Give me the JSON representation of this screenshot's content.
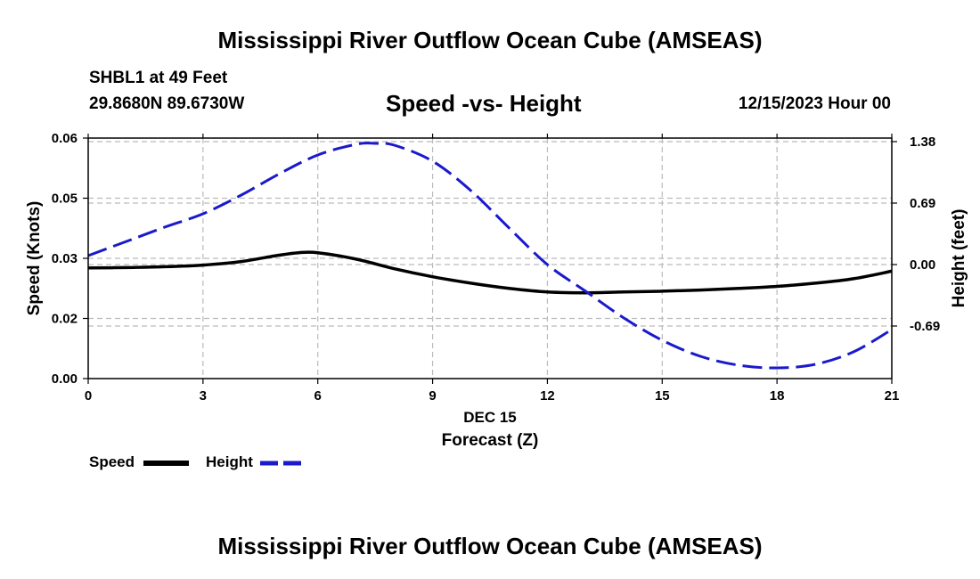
{
  "header": {
    "title": "Mississippi River Outflow Ocean Cube (AMSEAS)",
    "station": "SHBL1 at 49 Feet",
    "coords": "29.8680N  89.6730W",
    "subtitle": "Speed -vs- Height",
    "datetime": "12/15/2023 Hour 00"
  },
  "footer": {
    "title": "Mississippi River Outflow Ocean Cube (AMSEAS)"
  },
  "legend": {
    "speed_label": "Speed",
    "height_label": "Height"
  },
  "colors": {
    "speed": "#000000",
    "height": "#1a1acc",
    "grid": "#bbbbbb"
  },
  "chart_data": {
    "type": "line",
    "title": "Speed -vs- Height",
    "xlabel": "Forecast (Z)",
    "xlabel_date": "DEC 15",
    "ylabel": "Speed (Knots)",
    "y2label": "Height (feet)",
    "xlim": [
      0,
      21
    ],
    "ylim": [
      0,
      0.06
    ],
    "y2lim": [
      -1.28,
      1.42
    ],
    "x_ticks": [
      0,
      3,
      6,
      9,
      12,
      15,
      18,
      21
    ],
    "y_ticks": [
      0,
      0.015,
      0.03,
      0.045,
      0.06
    ],
    "y_tick_labels": [
      "0.00",
      "0.02",
      "0.03",
      "0.05",
      "0.06"
    ],
    "y2_ticks": [
      -0.69,
      0,
      0.69,
      1.38
    ],
    "y2_tick_labels": [
      "-0.69",
      "0.00",
      "0.69",
      "1.38"
    ],
    "grid": true,
    "series": [
      {
        "name": "Speed",
        "axis": "left",
        "style": "solid",
        "x": [
          0,
          1,
          2,
          3,
          4,
          5,
          5.5,
          6,
          7,
          8,
          9,
          10,
          11,
          12,
          13,
          14,
          15,
          16,
          17,
          18,
          19,
          20,
          21
        ],
        "values": [
          0.0276,
          0.0277,
          0.0279,
          0.0283,
          0.0292,
          0.0308,
          0.0314,
          0.0314,
          0.0298,
          0.0274,
          0.0254,
          0.0238,
          0.0225,
          0.0216,
          0.0214,
          0.0216,
          0.0218,
          0.0221,
          0.0225,
          0.023,
          0.0238,
          0.0249,
          0.0268
        ]
      },
      {
        "name": "Height",
        "axis": "right",
        "style": "dashed",
        "x": [
          0,
          1,
          2,
          3,
          4,
          5,
          6,
          7,
          7.5,
          8,
          9,
          10,
          11,
          12,
          13,
          14,
          15,
          16,
          17,
          18,
          19,
          20,
          21
        ],
        "values": [
          0.1,
          0.26,
          0.42,
          0.57,
          0.78,
          1.02,
          1.23,
          1.35,
          1.36,
          1.34,
          1.16,
          0.83,
          0.41,
          0.0,
          -0.3,
          -0.6,
          -0.85,
          -1.03,
          -1.13,
          -1.16,
          -1.12,
          -0.98,
          -0.73
        ]
      }
    ]
  }
}
